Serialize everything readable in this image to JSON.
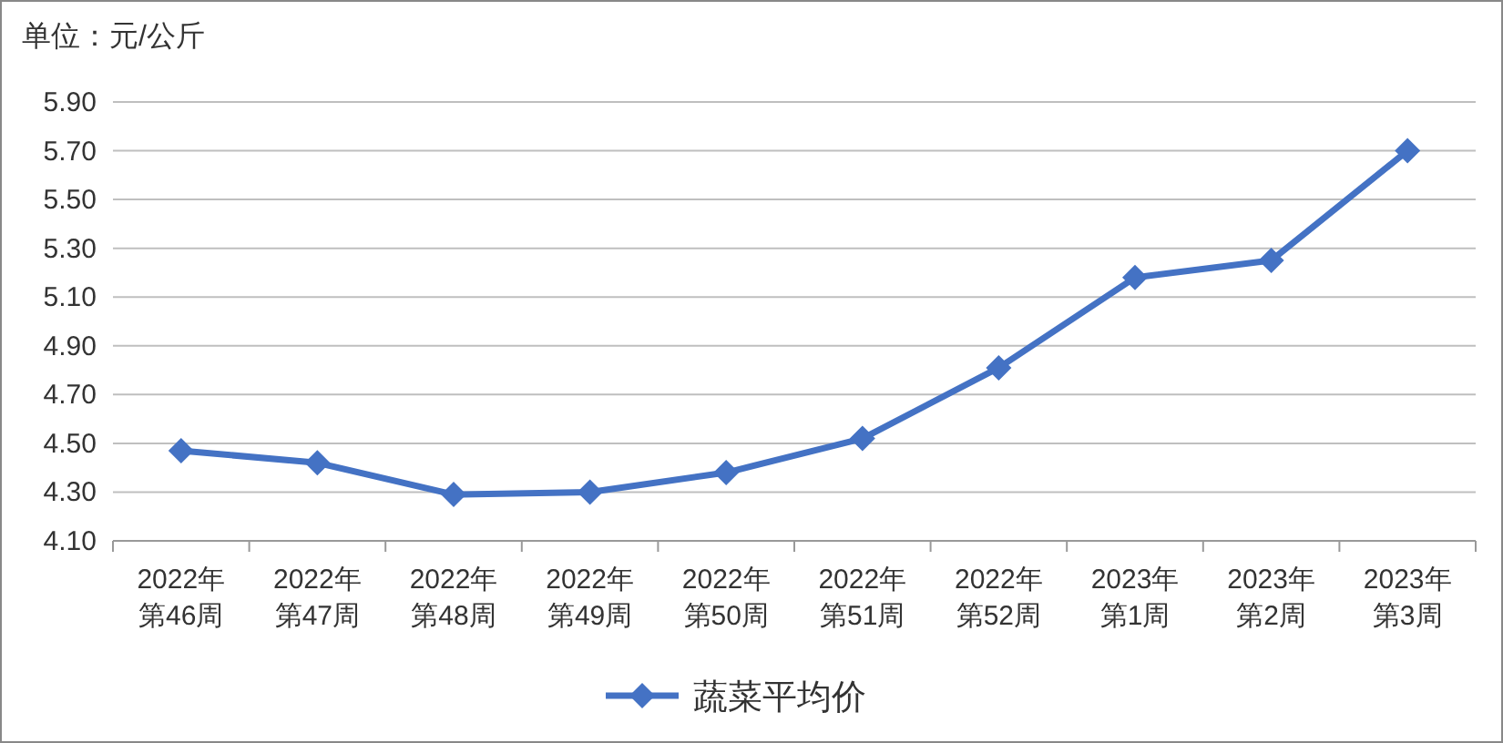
{
  "chart_data": {
    "type": "line",
    "ylabel": "单位：元/公斤",
    "categories": [
      "2022年第46周",
      "2022年第47周",
      "2022年第48周",
      "2022年第49周",
      "2022年第50周",
      "2022年第51周",
      "2022年第52周",
      "2023年第1周",
      "2023年第2周",
      "2023年第3周"
    ],
    "series": [
      {
        "name": "蔬菜平均价",
        "color": "#4472c4",
        "values": [
          4.47,
          4.42,
          4.29,
          4.3,
          4.38,
          4.52,
          4.81,
          5.18,
          5.25,
          5.7
        ]
      }
    ],
    "ylim": [
      4.1,
      5.9
    ],
    "yticks": [
      {
        "value": 4.1,
        "label": "4.10"
      },
      {
        "value": 4.3,
        "label": "4.30"
      },
      {
        "value": 4.5,
        "label": "4.50"
      },
      {
        "value": 4.7,
        "label": "4.70"
      },
      {
        "value": 4.9,
        "label": "4.90"
      },
      {
        "value": 5.1,
        "label": "5.10"
      },
      {
        "value": 5.3,
        "label": "5.30"
      },
      {
        "value": 5.5,
        "label": "5.50"
      },
      {
        "value": 5.7,
        "label": "5.70"
      },
      {
        "value": 5.9,
        "label": "5.90"
      }
    ],
    "grid": "y",
    "legend": "bottom",
    "marker": "diamond",
    "line_style": "solid"
  }
}
